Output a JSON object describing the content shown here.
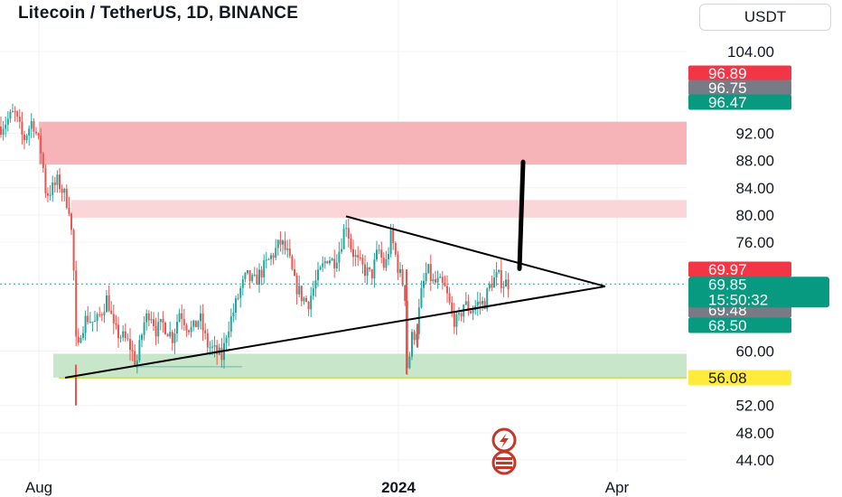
{
  "header": {
    "title": "Litecoin / TetherUS, 1D, BINANCE",
    "currency_button": "USDT"
  },
  "colors": {
    "up": "#26a69a",
    "down": "#ef5350",
    "resistance_zone": "#f7b4b8",
    "upper_zone": "#fbd5d7",
    "support_zone": "#c8e6c9",
    "support_line": "#d4e157",
    "current_price": "#089981",
    "last_close_line": "#26a69a"
  },
  "chart_data": {
    "type": "candlestick",
    "symbol": "Litecoin / TetherUS",
    "interval": "1D",
    "exchange": "BINANCE",
    "x_ticks": [
      "Aug",
      "2024",
      "Apr"
    ],
    "y_ticks": [
      "104.00",
      "92.00",
      "88.00",
      "84.00",
      "80.00",
      "76.00",
      "60.00",
      "52.00",
      "48.00",
      "44.00"
    ],
    "ylim": [
      43,
      108
    ],
    "price_labels": [
      {
        "text": "96.89",
        "value": 96.89,
        "color": "#f23645"
      },
      {
        "text": "96.75",
        "value": 96.75,
        "color": "#787b86"
      },
      {
        "text": "96.47",
        "value": 96.47,
        "color": "#089981"
      },
      {
        "text": "69.97",
        "value": 69.97,
        "color": "#f23645"
      },
      {
        "text": "69.48",
        "value": 69.48,
        "color": "#787b86"
      },
      {
        "text": "68.50",
        "value": 68.5,
        "color": "#089981"
      },
      {
        "text": "56.08",
        "value": 56.08,
        "color": "#ffeb3b"
      }
    ],
    "current_price": {
      "value": 69.85,
      "label": "69.85",
      "countdown": "15:50:32"
    },
    "zones": [
      {
        "name": "resistance-zone",
        "top": 93.7,
        "bottom": 87.4
      },
      {
        "name": "upper-zone",
        "top": 82.2,
        "bottom": 79.6
      },
      {
        "name": "support-zone",
        "top": 59.6,
        "bottom": 56.1
      }
    ],
    "support_level": 56.08,
    "triangle_lower": {
      "start_value": 56.08,
      "end_value": 69.5
    },
    "triangle_upper": {
      "start_value": 79.8,
      "end_value": 69.5
    },
    "projection_arrow": {
      "from_value": 72.1,
      "to_value": 87.8
    }
  }
}
